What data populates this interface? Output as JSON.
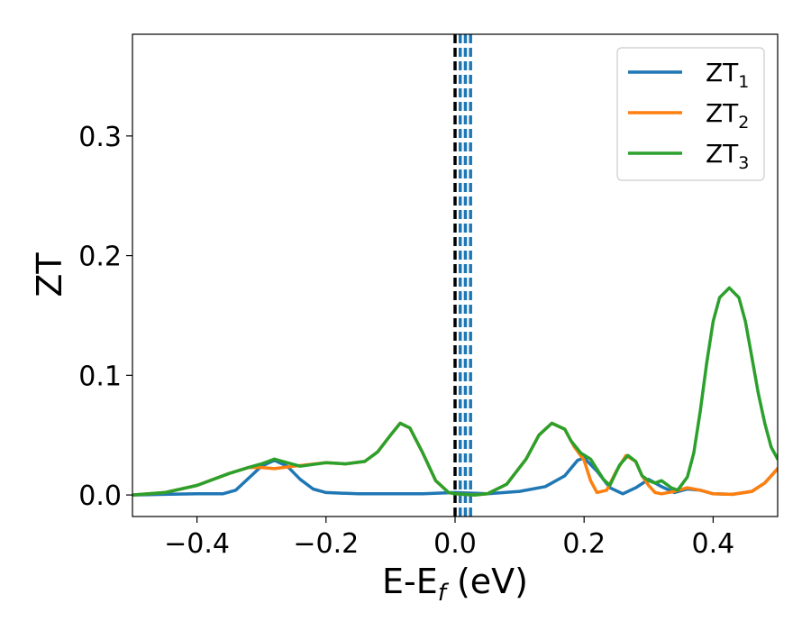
{
  "chart_data": {
    "type": "line",
    "xlabel": "E-E",
    "xlabel_sub": "f",
    "xlabel_unit": " (eV)",
    "ylabel": "ZT",
    "xlim": [
      -0.5,
      0.5
    ],
    "ylim": [
      -0.018,
      0.385
    ],
    "xticks": [
      -0.4,
      -0.2,
      0.0,
      0.2,
      0.4
    ],
    "xtick_labels": [
      "−0.4",
      "−0.2",
      "0.0",
      "0.2",
      "0.4"
    ],
    "yticks": [
      0.0,
      0.1,
      0.2,
      0.3
    ],
    "ytick_labels": [
      "0.0",
      "0.1",
      "0.2",
      "0.3"
    ],
    "grid": false,
    "legend_position": "top-right",
    "vlines": [
      {
        "x": 0.0,
        "style": "dashed",
        "color": "#000000"
      },
      {
        "x": 0.008,
        "style": "dashed",
        "color": "#1f77b4"
      },
      {
        "x": 0.016,
        "style": "dashed",
        "color": "#1f77b4"
      },
      {
        "x": 0.024,
        "style": "dashed",
        "color": "#1f77b4"
      }
    ],
    "series": [
      {
        "name": "ZT",
        "sub": "1",
        "color": "#1f77b4",
        "points": [
          [
            -0.5,
            0.0
          ],
          [
            -0.45,
            0.0005
          ],
          [
            -0.4,
            0.001
          ],
          [
            -0.36,
            0.001
          ],
          [
            -0.34,
            0.004
          ],
          [
            -0.32,
            0.014
          ],
          [
            -0.3,
            0.024
          ],
          [
            -0.28,
            0.029
          ],
          [
            -0.26,
            0.024
          ],
          [
            -0.24,
            0.013
          ],
          [
            -0.22,
            0.005
          ],
          [
            -0.2,
            0.002
          ],
          [
            -0.15,
            0.001
          ],
          [
            -0.1,
            0.001
          ],
          [
            -0.05,
            0.001
          ],
          [
            0.0,
            0.002
          ],
          [
            0.05,
            0.001
          ],
          [
            0.1,
            0.003
          ],
          [
            0.14,
            0.007
          ],
          [
            0.17,
            0.016
          ],
          [
            0.19,
            0.029
          ],
          [
            0.2,
            0.031
          ],
          [
            0.22,
            0.02
          ],
          [
            0.24,
            0.006
          ],
          [
            0.26,
            0.001
          ],
          [
            0.28,
            0.006
          ],
          [
            0.3,
            0.013
          ],
          [
            0.32,
            0.007
          ],
          [
            0.34,
            0.002
          ],
          [
            0.36,
            0.005
          ],
          [
            0.38,
            0.004
          ],
          [
            0.4,
            0.001
          ],
          [
            0.43,
            0.0005
          ],
          [
            0.46,
            0.003
          ],
          [
            0.48,
            0.01
          ],
          [
            0.5,
            0.022
          ]
        ]
      },
      {
        "name": "ZT",
        "sub": "2",
        "color": "#ff7f0e",
        "points": [
          [
            -0.5,
            0.0
          ],
          [
            -0.45,
            0.002
          ],
          [
            -0.4,
            0.008
          ],
          [
            -0.35,
            0.018
          ],
          [
            -0.32,
            0.023
          ],
          [
            -0.3,
            0.023
          ],
          [
            -0.28,
            0.022
          ],
          [
            -0.25,
            0.024
          ],
          [
            -0.2,
            0.027
          ],
          [
            -0.17,
            0.026
          ],
          [
            -0.14,
            0.028
          ],
          [
            -0.12,
            0.036
          ],
          [
            -0.1,
            0.05
          ],
          [
            -0.085,
            0.06
          ],
          [
            -0.07,
            0.056
          ],
          [
            -0.05,
            0.035
          ],
          [
            -0.03,
            0.012
          ],
          [
            -0.01,
            0.002
          ],
          [
            0.0,
            0.001
          ],
          [
            0.03,
            0.0
          ],
          [
            0.05,
            0.001
          ],
          [
            0.08,
            0.009
          ],
          [
            0.11,
            0.03
          ],
          [
            0.13,
            0.05
          ],
          [
            0.15,
            0.06
          ],
          [
            0.17,
            0.055
          ],
          [
            0.185,
            0.04
          ],
          [
            0.2,
            0.029
          ],
          [
            0.21,
            0.012
          ],
          [
            0.22,
            0.002
          ],
          [
            0.235,
            0.004
          ],
          [
            0.25,
            0.02
          ],
          [
            0.265,
            0.033
          ],
          [
            0.28,
            0.028
          ],
          [
            0.29,
            0.016
          ],
          [
            0.3,
            0.008
          ],
          [
            0.31,
            0.002
          ],
          [
            0.32,
            0.001
          ],
          [
            0.34,
            0.003
          ],
          [
            0.36,
            0.006
          ],
          [
            0.38,
            0.004
          ],
          [
            0.4,
            0.001
          ],
          [
            0.43,
            0.0005
          ],
          [
            0.46,
            0.003
          ],
          [
            0.48,
            0.01
          ],
          [
            0.5,
            0.022
          ]
        ]
      },
      {
        "name": "ZT",
        "sub": "3",
        "color": "#2ca02c",
        "points": [
          [
            -0.5,
            0.0
          ],
          [
            -0.45,
            0.002
          ],
          [
            -0.4,
            0.008
          ],
          [
            -0.35,
            0.018
          ],
          [
            -0.32,
            0.023
          ],
          [
            -0.3,
            0.026
          ],
          [
            -0.28,
            0.03
          ],
          [
            -0.26,
            0.027
          ],
          [
            -0.24,
            0.024
          ],
          [
            -0.2,
            0.027
          ],
          [
            -0.17,
            0.026
          ],
          [
            -0.14,
            0.028
          ],
          [
            -0.12,
            0.036
          ],
          [
            -0.1,
            0.05
          ],
          [
            -0.085,
            0.06
          ],
          [
            -0.07,
            0.056
          ],
          [
            -0.05,
            0.035
          ],
          [
            -0.03,
            0.012
          ],
          [
            -0.01,
            0.002
          ],
          [
            0.0,
            0.001
          ],
          [
            0.03,
            0.0
          ],
          [
            0.05,
            0.001
          ],
          [
            0.08,
            0.009
          ],
          [
            0.11,
            0.03
          ],
          [
            0.13,
            0.05
          ],
          [
            0.15,
            0.06
          ],
          [
            0.17,
            0.055
          ],
          [
            0.18,
            0.045
          ],
          [
            0.195,
            0.035
          ],
          [
            0.21,
            0.03
          ],
          [
            0.23,
            0.013
          ],
          [
            0.24,
            0.008
          ],
          [
            0.255,
            0.025
          ],
          [
            0.268,
            0.033
          ],
          [
            0.28,
            0.028
          ],
          [
            0.29,
            0.016
          ],
          [
            0.3,
            0.012
          ],
          [
            0.31,
            0.01
          ],
          [
            0.32,
            0.012
          ],
          [
            0.335,
            0.006
          ],
          [
            0.345,
            0.004
          ],
          [
            0.36,
            0.015
          ],
          [
            0.37,
            0.035
          ],
          [
            0.38,
            0.07
          ],
          [
            0.39,
            0.11
          ],
          [
            0.4,
            0.145
          ],
          [
            0.41,
            0.165
          ],
          [
            0.425,
            0.173
          ],
          [
            0.44,
            0.165
          ],
          [
            0.45,
            0.145
          ],
          [
            0.46,
            0.115
          ],
          [
            0.47,
            0.085
          ],
          [
            0.48,
            0.06
          ],
          [
            0.49,
            0.04
          ],
          [
            0.5,
            0.03
          ]
        ]
      }
    ]
  }
}
